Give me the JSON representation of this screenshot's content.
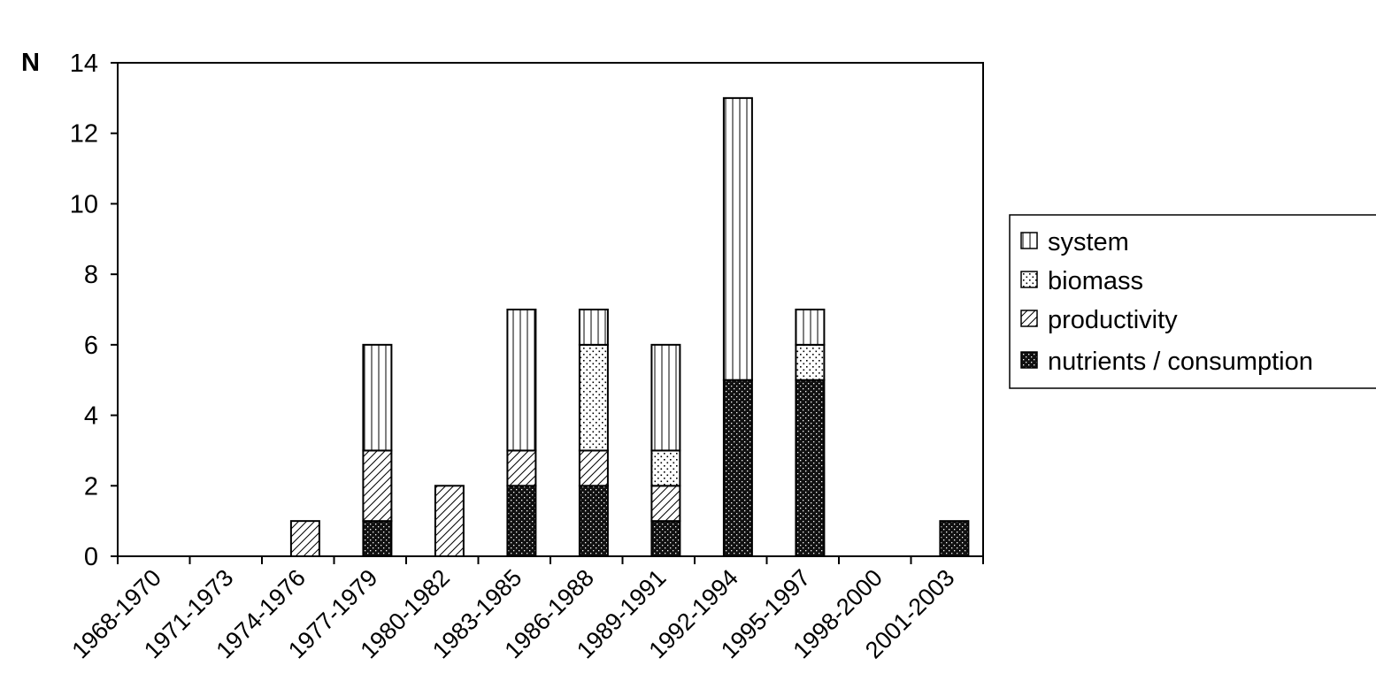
{
  "chart_data": {
    "type": "bar",
    "stacked": true,
    "ylabel": "N",
    "ylim": [
      0,
      14
    ],
    "yticks": [
      0,
      2,
      4,
      6,
      8,
      10,
      12,
      14
    ],
    "categories": [
      "1968-1970",
      "1971-1973",
      "1974-1976",
      "1977-1979",
      "1980-1982",
      "1983-1985",
      "1986-1988",
      "1989-1991",
      "1992-1994",
      "1995-1997",
      "1998-2000",
      "2001-2003"
    ],
    "series": [
      {
        "name": "nutrients / consumption",
        "pattern": "dense-dots-dark",
        "values": [
          0,
          0,
          0,
          1,
          0,
          2,
          2,
          1,
          5,
          5,
          0,
          1
        ]
      },
      {
        "name": "productivity",
        "pattern": "diagonal-hatch",
        "values": [
          0,
          0,
          1,
          2,
          2,
          1,
          1,
          1,
          0,
          0,
          0,
          0
        ]
      },
      {
        "name": "biomass",
        "pattern": "sparse-dots",
        "values": [
          0,
          0,
          0,
          0,
          0,
          0,
          3,
          1,
          0,
          1,
          0,
          0
        ]
      },
      {
        "name": "system",
        "pattern": "vertical-lines",
        "values": [
          0,
          0,
          0,
          3,
          0,
          4,
          1,
          3,
          8,
          1,
          0,
          0
        ]
      }
    ],
    "legend_order": [
      "system",
      "biomass",
      "productivity",
      "nutrients / consumption"
    ],
    "legend_position": "right",
    "grid": false,
    "colors": {
      "ink": "#000000",
      "background": "#ffffff",
      "dark_fill": "#111111"
    }
  }
}
